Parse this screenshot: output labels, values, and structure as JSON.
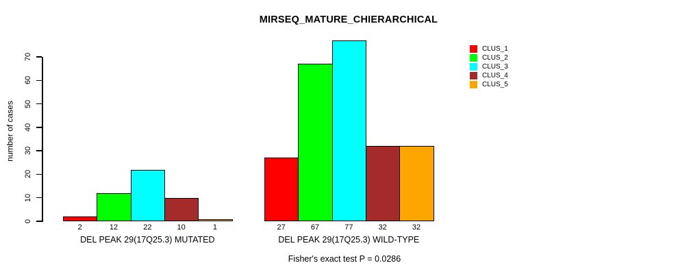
{
  "chart_data": {
    "type": "bar",
    "title": "MIRSEQ_MATURE_CHIERARCHICAL",
    "ylabel": "number of cases",
    "xlabel": "",
    "ylim": [
      0,
      77
    ],
    "yticks": [
      0,
      10,
      20,
      30,
      40,
      50,
      60,
      70
    ],
    "grid": false,
    "legend_position": "right",
    "bar_outline_color": "#000000",
    "background_color": "#FFFFFF",
    "series_colors": [
      "#FF0000",
      "#00FF00",
      "#00FFFF",
      "#A52A2A",
      "#FFA500"
    ],
    "legend": [
      {
        "label": "CLUS_1",
        "color": "#FF0000"
      },
      {
        "label": "CLUS_2",
        "color": "#00FF00"
      },
      {
        "label": "CLUS_3",
        "color": "#00FFFF"
      },
      {
        "label": "CLUS_4",
        "color": "#A52A2A"
      },
      {
        "label": "CLUS_5",
        "color": "#FFA500"
      }
    ],
    "groups": [
      {
        "label": "DEL PEAK 29(17Q25.3) MUTATED",
        "values": [
          2,
          12,
          22,
          10,
          1
        ],
        "value_labels": [
          "2",
          "12",
          "22",
          "10",
          "1"
        ]
      },
      {
        "label": "DEL PEAK 29(17Q25.3) WILD-TYPE",
        "values": [
          27,
          67,
          77,
          32,
          32
        ],
        "value_labels": [
          "27",
          "67",
          "77",
          "32",
          "32"
        ]
      }
    ],
    "annotation": "Fisher's exact test P = 0.0286"
  }
}
